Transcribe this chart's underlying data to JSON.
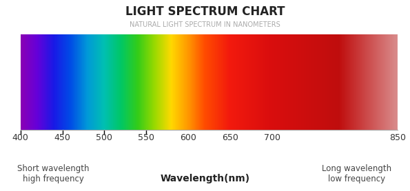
{
  "title": "LIGHT SPECTRUM CHART",
  "subtitle": "NATURAL LIGHT SPECTRUM IN NANOMETERS",
  "wavelength_min": 400,
  "wavelength_max": 850,
  "tick_positions": [
    400,
    450,
    500,
    550,
    600,
    650,
    700,
    850
  ],
  "tick_marks": [
    400,
    450,
    500,
    550
  ],
  "xlabel_center": "Wavelength(nm)",
  "xlabel_left": "Short wavelength\nhigh frequency",
  "xlabel_right": "Long wavelength\nlow frequency",
  "background_color": "#ffffff",
  "spectrum_colors": [
    [
      400,
      [
        0.55,
        0.0,
        0.7
      ]
    ],
    [
      420,
      [
        0.4,
        0.0,
        0.85
      ]
    ],
    [
      440,
      [
        0.1,
        0.1,
        0.9
      ]
    ],
    [
      460,
      [
        0.0,
        0.3,
        0.9
      ]
    ],
    [
      480,
      [
        0.0,
        0.6,
        0.85
      ]
    ],
    [
      500,
      [
        0.0,
        0.75,
        0.7
      ]
    ],
    [
      520,
      [
        0.0,
        0.78,
        0.4
      ]
    ],
    [
      540,
      [
        0.2,
        0.8,
        0.1
      ]
    ],
    [
      560,
      [
        0.6,
        0.85,
        0.0
      ]
    ],
    [
      580,
      [
        1.0,
        0.85,
        0.0
      ]
    ],
    [
      600,
      [
        1.0,
        0.6,
        0.0
      ]
    ],
    [
      620,
      [
        1.0,
        0.3,
        0.0
      ]
    ],
    [
      650,
      [
        0.95,
        0.1,
        0.05
      ]
    ],
    [
      700,
      [
        0.85,
        0.05,
        0.05
      ]
    ],
    [
      780,
      [
        0.75,
        0.05,
        0.05
      ]
    ],
    [
      850,
      [
        0.85,
        0.55,
        0.55
      ]
    ]
  ]
}
